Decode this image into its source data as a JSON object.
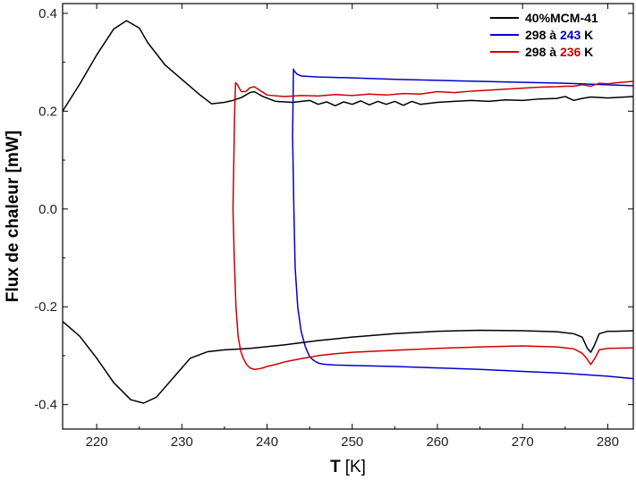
{
  "chart_data": {
    "type": "line",
    "title": "",
    "xlabel": {
      "main": "T",
      "unit": "[K]"
    },
    "ylabel": "Flux de chaleur [mW]",
    "xlim": [
      216,
      283
    ],
    "ylim": [
      -0.45,
      0.42
    ],
    "xticks": [
      220,
      230,
      240,
      250,
      260,
      270,
      280
    ],
    "yticks": [
      0.4,
      0.2,
      0.0,
      -0.2,
      -0.4
    ],
    "ytick_labels": [
      "0.4",
      "0.2",
      "0.0",
      "-0.2",
      "-0.4"
    ],
    "grid": false,
    "legend_position": "top-right",
    "legend": [
      {
        "name": "40%MCM-41",
        "color": "#000000",
        "parts": [
          {
            "text": "40%MCM-41",
            "color": "#000000"
          }
        ]
      },
      {
        "name": "298 à 243 K",
        "color": "#0000cc",
        "parts": [
          {
            "text": "298 à ",
            "color": "#000000"
          },
          {
            "text": "243",
            "color": "#0000cc"
          },
          {
            "text": " K",
            "color": "#000000"
          }
        ]
      },
      {
        "name": "298 à 236 K",
        "color": "#cc0000",
        "parts": [
          {
            "text": "298 à ",
            "color": "#000000"
          },
          {
            "text": "236",
            "color": "#cc0000"
          },
          {
            "text": " K",
            "color": "#000000"
          }
        ]
      }
    ],
    "series": [
      {
        "name": "40%MCM-41",
        "color": "#000000",
        "x": [
          216,
          218,
          220,
          222,
          223.5,
          225,
          226,
          228,
          230,
          232,
          233.5,
          235,
          236,
          237,
          238,
          238.5,
          239.5,
          241,
          243,
          245,
          246,
          247,
          248,
          249,
          250,
          251,
          252,
          253,
          254,
          255,
          256,
          257,
          258,
          260,
          262,
          264,
          266,
          268,
          270,
          272,
          274,
          275,
          276,
          277,
          278,
          280,
          283
        ],
        "y": [
          0.2,
          0.255,
          0.315,
          0.368,
          0.385,
          0.37,
          0.34,
          0.295,
          0.265,
          0.235,
          0.215,
          0.218,
          0.222,
          0.228,
          0.238,
          0.24,
          0.23,
          0.22,
          0.218,
          0.222,
          0.214,
          0.219,
          0.211,
          0.219,
          0.214,
          0.221,
          0.213,
          0.22,
          0.214,
          0.22,
          0.212,
          0.22,
          0.214,
          0.218,
          0.22,
          0.222,
          0.22,
          0.223,
          0.222,
          0.225,
          0.226,
          0.23,
          0.222,
          0.226,
          0.229,
          0.227,
          0.23
        ]
      },
      {
        "name": "40%MCM-41",
        "color": "#000000",
        "x": [
          216,
          218,
          220,
          222,
          224,
          225.5,
          227,
          229,
          231,
          233,
          235,
          238,
          242,
          246,
          250,
          255,
          260,
          265,
          270,
          274,
          276,
          277,
          277.6,
          278,
          278.4,
          279,
          280,
          281,
          283
        ],
        "y": [
          -0.23,
          -0.26,
          -0.305,
          -0.355,
          -0.39,
          -0.397,
          -0.385,
          -0.345,
          -0.305,
          -0.292,
          -0.288,
          -0.285,
          -0.278,
          -0.269,
          -0.262,
          -0.255,
          -0.25,
          -0.248,
          -0.249,
          -0.251,
          -0.255,
          -0.262,
          -0.285,
          -0.293,
          -0.28,
          -0.255,
          -0.25,
          -0.25,
          -0.249
        ]
      },
      {
        "name": "298 à 243 K",
        "color": "#0000cc",
        "x": [
          283,
          280,
          275,
          270,
          265,
          260,
          255,
          250,
          248,
          246,
          244,
          243.5,
          243.2,
          243.1,
          243.0,
          243.15,
          243.3,
          243.6,
          244.0,
          244.5,
          245,
          245.5,
          246,
          246.5,
          247,
          248,
          250,
          255,
          260,
          265,
          270,
          275,
          280,
          283
        ],
        "y": [
          0.252,
          0.254,
          0.257,
          0.259,
          0.261,
          0.263,
          0.265,
          0.268,
          0.269,
          0.27,
          0.272,
          0.276,
          0.282,
          0.286,
          0.15,
          0.0,
          -0.12,
          -0.2,
          -0.25,
          -0.282,
          -0.302,
          -0.31,
          -0.315,
          -0.317,
          -0.318,
          -0.319,
          -0.32,
          -0.322,
          -0.325,
          -0.328,
          -0.332,
          -0.336,
          -0.342,
          -0.347
        ]
      },
      {
        "name": "298 à 236 K",
        "color": "#cc0000",
        "x": [
          283,
          281,
          280,
          279,
          278,
          277,
          276,
          275,
          274,
          272,
          270,
          268,
          266,
          264,
          262,
          260,
          258,
          256,
          254,
          252,
          250,
          248,
          246,
          244,
          242,
          240,
          238.5,
          238,
          237.5,
          237,
          236.8,
          236.5,
          236.3,
          236.2,
          236.1,
          236.0,
          236.15,
          236.35,
          236.6,
          236.9,
          237.2,
          237.6,
          238,
          238.5,
          239,
          239.5,
          240,
          241,
          242,
          244,
          246,
          248,
          250,
          255,
          260,
          265,
          270,
          274,
          276,
          277,
          277.5,
          278,
          278.5,
          279,
          280,
          283
        ],
        "y": [
          0.261,
          0.258,
          0.256,
          0.257,
          0.251,
          0.254,
          0.251,
          0.251,
          0.25,
          0.249,
          0.247,
          0.245,
          0.243,
          0.241,
          0.238,
          0.24,
          0.235,
          0.236,
          0.233,
          0.235,
          0.232,
          0.234,
          0.231,
          0.232,
          0.23,
          0.233,
          0.25,
          0.248,
          0.24,
          0.24,
          0.245,
          0.255,
          0.258,
          0.2,
          0.1,
          0.0,
          -0.1,
          -0.2,
          -0.26,
          -0.29,
          -0.305,
          -0.318,
          -0.325,
          -0.328,
          -0.327,
          -0.325,
          -0.322,
          -0.318,
          -0.313,
          -0.306,
          -0.3,
          -0.296,
          -0.293,
          -0.289,
          -0.285,
          -0.282,
          -0.28,
          -0.282,
          -0.286,
          -0.295,
          -0.305,
          -0.318,
          -0.305,
          -0.288,
          -0.285,
          -0.284
        ]
      }
    ]
  }
}
